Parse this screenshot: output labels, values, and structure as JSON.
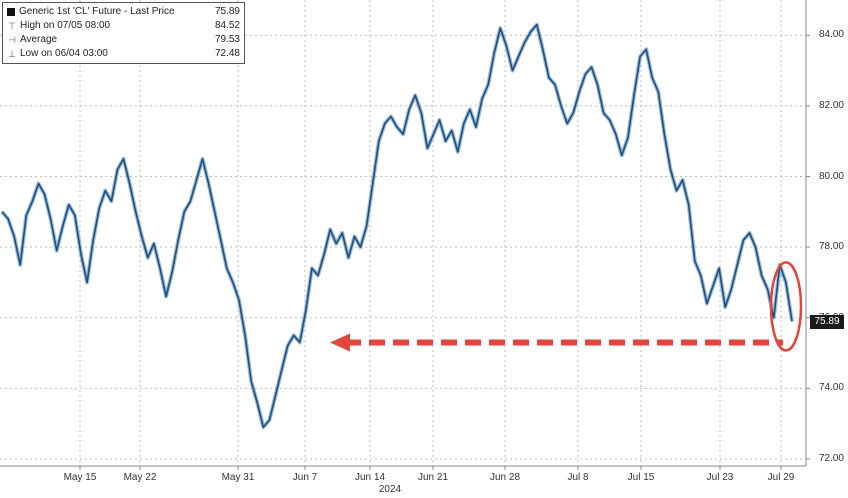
{
  "legend": {
    "title": "Generic 1st 'CL' Future - Last Price",
    "last": "75.89",
    "high_label": "High on 07/05 08:00",
    "high_value": "84.52",
    "avg_label": "Average",
    "avg_value": "79.53",
    "low_label": "Low on 06/04 03:00",
    "low_value": "72.48"
  },
  "chart_data": {
    "type": "line",
    "title": "Generic 1st 'CL' Future - Last Price",
    "xlabel": "2024",
    "ylabel": "",
    "ylim": [
      71.8,
      85.0
    ],
    "yticks": [
      "84.00",
      "82.00",
      "80.00",
      "78.00",
      "76.00",
      "74.00",
      "72.00"
    ],
    "xticks": [
      "May 15",
      "May 22",
      "May 31",
      "Jun 7",
      "Jun 14",
      "Jun 21",
      "Jun 28",
      "Jul 8",
      "Jul 15",
      "Jul 23",
      "Jul 29"
    ],
    "last_price_label": "75.89",
    "grid": true,
    "legend_position": "top-left",
    "colors": {
      "line": "#1f4e79",
      "line_shadow": "#6fa0d0",
      "highlight": "#e0463b",
      "grid": "#bdbdbd"
    },
    "series": [
      {
        "name": "Last Price",
        "values": [
          79.0,
          78.8,
          78.3,
          77.5,
          78.9,
          79.3,
          79.8,
          79.5,
          78.8,
          77.9,
          78.6,
          79.2,
          78.9,
          77.8,
          77.0,
          78.2,
          79.1,
          79.6,
          79.3,
          80.2,
          80.5,
          79.8,
          79.0,
          78.3,
          77.7,
          78.1,
          77.4,
          76.6,
          77.3,
          78.2,
          79.0,
          79.3,
          79.9,
          80.5,
          79.8,
          79.0,
          78.2,
          77.4,
          77.0,
          76.5,
          75.5,
          74.2,
          73.6,
          72.9,
          73.1,
          73.8,
          74.5,
          75.2,
          75.5,
          75.3,
          76.2,
          77.4,
          77.2,
          77.8,
          78.5,
          78.1,
          78.4,
          77.7,
          78.3,
          78.0,
          78.6,
          79.8,
          81.0,
          81.5,
          81.7,
          81.4,
          81.2,
          81.9,
          82.3,
          81.8,
          80.8,
          81.2,
          81.6,
          81.0,
          81.3,
          80.7,
          81.5,
          81.9,
          81.4,
          82.2,
          82.6,
          83.5,
          84.2,
          83.7,
          83.0,
          83.4,
          83.8,
          84.1,
          84.3,
          83.6,
          82.8,
          82.6,
          82.0,
          81.5,
          81.8,
          82.4,
          82.9,
          83.1,
          82.6,
          81.8,
          81.6,
          81.2,
          80.6,
          81.1,
          82.3,
          83.4,
          83.6,
          82.8,
          82.4,
          81.2,
          80.2,
          79.6,
          79.9,
          79.2,
          77.6,
          77.2,
          76.4,
          76.9,
          77.4,
          76.3,
          76.8,
          77.5,
          78.2,
          78.4,
          78.0,
          77.2,
          76.8,
          76.0,
          77.5,
          77.0,
          75.9
        ]
      }
    ],
    "annotation": {
      "type": "arrow",
      "color": "#e0463b",
      "y_value": 75.3
    }
  }
}
